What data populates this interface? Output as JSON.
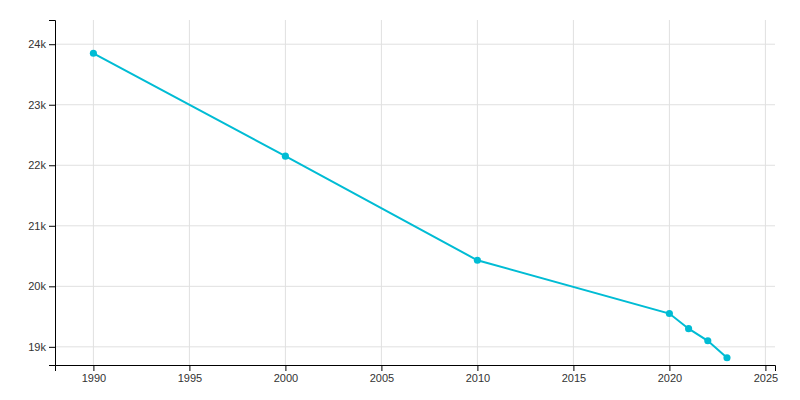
{
  "chart_data": {
    "type": "line",
    "x": [
      1990,
      2000,
      2010,
      2020,
      2021,
      2022,
      2023
    ],
    "values": [
      23850,
      22150,
      20430,
      19550,
      19300,
      19100,
      18820
    ],
    "color": "#00BCD4",
    "marker": "circle",
    "xlim": [
      1988,
      2025.5
    ],
    "ylim": [
      18700,
      24400
    ],
    "xticks": [
      1990,
      1995,
      2000,
      2005,
      2010,
      2015,
      2020,
      2025
    ],
    "yticks": [
      {
        "value": 19000,
        "label": "19k"
      },
      {
        "value": 20000,
        "label": "20k"
      },
      {
        "value": 21000,
        "label": "21k"
      },
      {
        "value": 22000,
        "label": "22k"
      },
      {
        "value": 23000,
        "label": "23k"
      },
      {
        "value": 24000,
        "label": "24k"
      }
    ],
    "grid": true
  }
}
